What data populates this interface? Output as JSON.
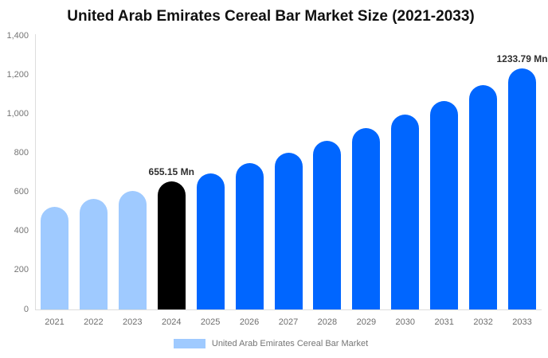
{
  "title": "United Arab Emirates Cereal Bar Market Size (2021-2033)",
  "legend": {
    "label": "United Arab Emirates Cereal Bar Market",
    "swatch_color": "#9FCAFF"
  },
  "colors": {
    "historical_bar": "#9FCAFF",
    "base_year_bar": "#000000",
    "forecast_bar": "#0066FF",
    "axis_line": "#DDDDDD",
    "axis_text": "#757575",
    "annotation_text": "#2E2E2E",
    "title_text": "#111111"
  },
  "chart_data": {
    "type": "bar",
    "title": "United Arab Emirates Cereal Bar Market Size (2021-2033)",
    "xlabel": "",
    "ylabel": "",
    "categories": [
      "2021",
      "2022",
      "2023",
      "2024",
      "2025",
      "2026",
      "2027",
      "2028",
      "2029",
      "2030",
      "2031",
      "2032",
      "2033"
    ],
    "values": [
      525,
      567,
      605,
      655.15,
      696,
      747,
      803,
      862,
      927,
      996,
      1066,
      1148,
      1233.79
    ],
    "bar_colors": [
      "#9FCAFF",
      "#9FCAFF",
      "#9FCAFF",
      "#000000",
      "#0066FF",
      "#0066FF",
      "#0066FF",
      "#0066FF",
      "#0066FF",
      "#0066FF",
      "#0066FF",
      "#0066FF",
      "#0066FF"
    ],
    "annotations": [
      {
        "category": "2024",
        "text": "655.15 Mn"
      },
      {
        "category": "2033",
        "text": "1233.79 Mn"
      }
    ],
    "ylim": [
      0,
      1400
    ],
    "yticks": [
      "0",
      "200",
      "400",
      "600",
      "800",
      "1,000",
      "1,200",
      "1,400"
    ],
    "grid": false,
    "legend_position": "bottom",
    "legend_entries": [
      "United Arab Emirates Cereal Bar Market"
    ],
    "unit": "Mn"
  }
}
